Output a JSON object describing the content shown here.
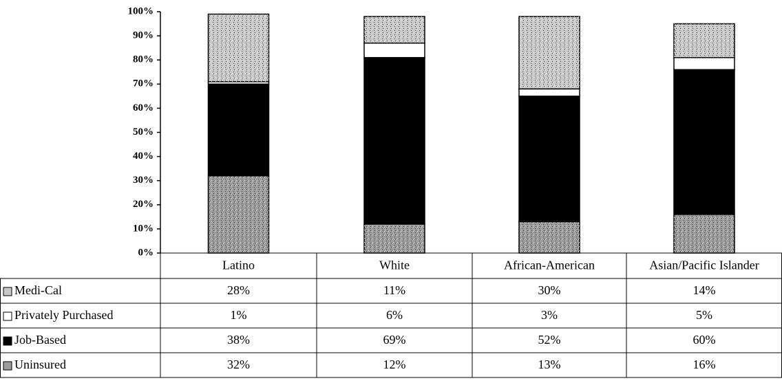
{
  "chart_data": {
    "type": "bar",
    "stacked": true,
    "categories": [
      "Latino",
      "White",
      "African-American",
      "Asian/Pacific Islander"
    ],
    "series": [
      {
        "name": "Medi-Cal",
        "color": "#c9c9c9",
        "values": [
          28,
          11,
          30,
          14
        ],
        "value_labels": [
          "28%",
          "11%",
          "30%",
          "14%"
        ]
      },
      {
        "name": "Privately Purchased",
        "color": "#ffffff",
        "values": [
          1,
          6,
          3,
          5
        ],
        "value_labels": [
          "1%",
          "6%",
          "3%",
          "5%"
        ]
      },
      {
        "name": "Job-Based",
        "color": "#000000",
        "values": [
          38,
          69,
          52,
          60
        ],
        "value_labels": [
          "38%",
          "69%",
          "52%",
          "60%"
        ]
      },
      {
        "name": "Uninsured",
        "color": "#9b9b9b",
        "values": [
          32,
          12,
          13,
          16
        ],
        "value_labels": [
          "32%",
          "12%",
          "13%",
          "16%"
        ]
      }
    ],
    "ylim": [
      0,
      100
    ],
    "yticks": [
      {
        "value": 0,
        "label": "0%"
      },
      {
        "value": 10,
        "label": "10%"
      },
      {
        "value": 20,
        "label": "20%"
      },
      {
        "value": 30,
        "label": "30%"
      },
      {
        "value": 40,
        "label": "40%"
      },
      {
        "value": 50,
        "label": "50%"
      },
      {
        "value": 60,
        "label": "60%"
      },
      {
        "value": 70,
        "label": "70%"
      },
      {
        "value": 80,
        "label": "80%"
      },
      {
        "value": 90,
        "label": "90%"
      },
      {
        "value": 100,
        "label": "100%"
      }
    ]
  }
}
